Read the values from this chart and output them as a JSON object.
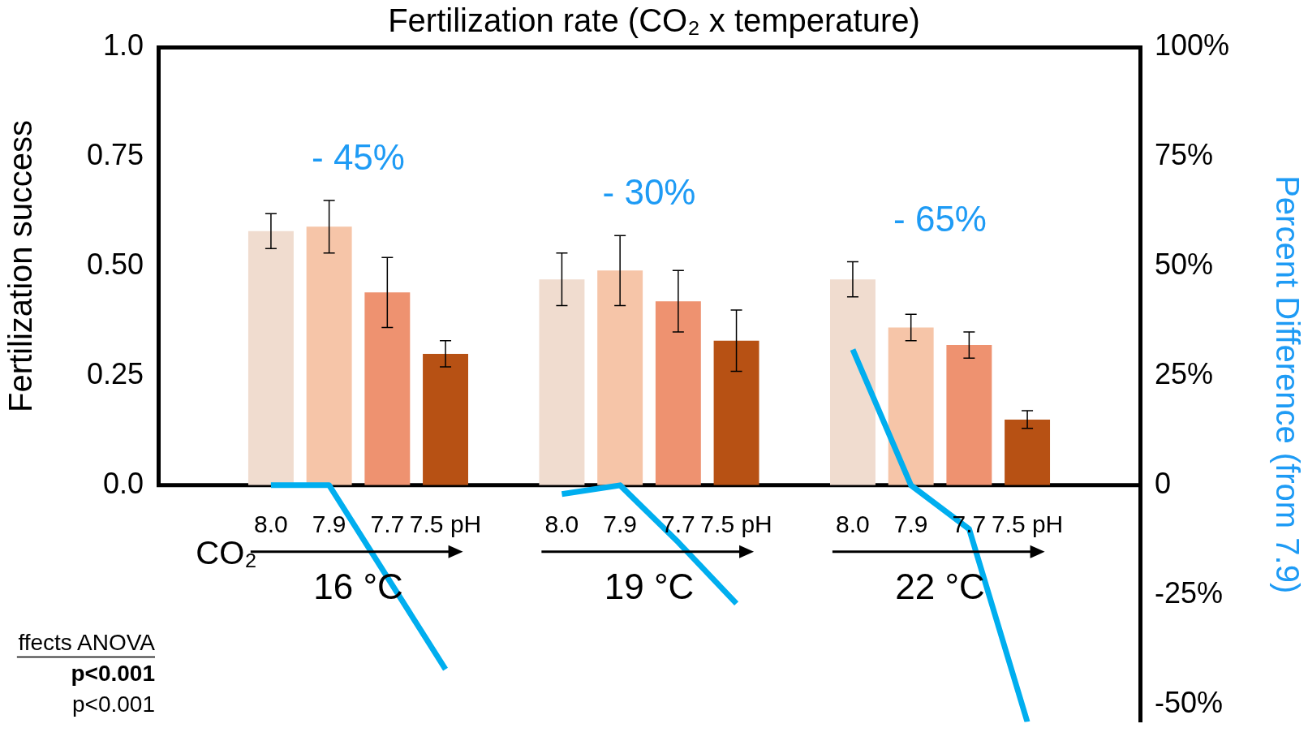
{
  "chart_data": {
    "type": "bar",
    "title": "Fertilization rate (CO₂ x temperature)",
    "ylabel": "Fertilization success",
    "y2label": "Percent Difference (from 7.9)",
    "categories": [
      "8.0",
      "7.9",
      "7.7",
      "7.5 pH",
      "8.0",
      "7.9",
      "7.7",
      "7.5 pH",
      "8.0",
      "7.9",
      "7.7",
      "7.5 pH"
    ],
    "series": [
      {
        "colors": [
          "#f0dccf",
          "#f6c5a8",
          "#ee9270",
          "#b75114",
          "#f0dccf",
          "#f6c5a8",
          "#ee9270",
          "#b75114",
          "#f0dccf",
          "#f6c5a8",
          "#ee9270",
          "#b75114"
        ],
        "values": [
          0.58,
          0.59,
          0.44,
          0.3,
          0.47,
          0.49,
          0.42,
          0.33,
          0.47,
          0.36,
          0.32,
          0.15
        ],
        "errors": [
          0.04,
          0.06,
          0.08,
          0.03,
          0.06,
          0.08,
          0.07,
          0.07,
          0.04,
          0.03,
          0.03,
          0.02
        ]
      },
      {
        "type": "line",
        "axis": "y2",
        "color": "#00aeef",
        "values": [
          0,
          0,
          -21,
          -42,
          null,
          null,
          null,
          null,
          null,
          null,
          null,
          null
        ]
      },
      {
        "type": "line",
        "axis": "y2",
        "color": "#00aeef",
        "values": [
          null,
          null,
          null,
          null,
          -2,
          0,
          -13,
          -27,
          null,
          null,
          null,
          null
        ]
      },
      {
        "type": "line",
        "axis": "y2",
        "color": "#00aeef",
        "values": [
          null,
          null,
          null,
          null,
          null,
          null,
          null,
          null,
          31,
          0,
          -10,
          -54
        ]
      }
    ],
    "ylim": [
      0,
      1
    ],
    "yticks": [
      {
        "value": 0,
        "label": "0.0"
      },
      0.25,
      {
        "value": 0.5,
        "label": "0.50"
      },
      0.75,
      {
        "value": 1,
        "label": "1.0"
      }
    ],
    "y2lim": [
      -54,
      100
    ],
    "y2ticks": [
      {
        "value": 100,
        "label": "100%"
      },
      {
        "value": 75,
        "label": "75%"
      },
      {
        "value": 50,
        "label": "50%"
      },
      {
        "value": 25,
        "label": "25%"
      },
      0,
      {
        "value": -25,
        "label": "-25%"
      },
      {
        "value": -50,
        "label": "-50%"
      }
    ],
    "annotations": [
      "- 45%",
      "- 30%",
      "- 65%",
      "16 °C",
      "19 °C",
      "22 °C",
      "CO₂",
      "ffects ANOVA",
      "p<0.001",
      "p<0.001"
    ]
  }
}
